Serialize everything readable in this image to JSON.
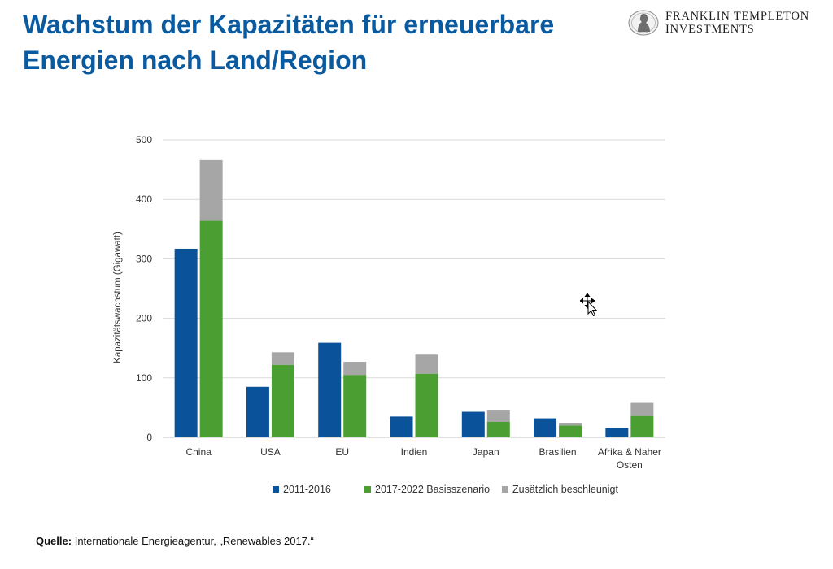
{
  "title": {
    "line1": "Wachstum der Kapazitäten für erneuerbare",
    "line2": "Energien nach Land/Region"
  },
  "logo": {
    "line1": "FRANKLIN TEMPLETON",
    "line2": "INVESTMENTS",
    "icon": "benjamin-franklin-medallion-icon"
  },
  "source": {
    "label": "Quelle:",
    "text": "Internationale Energieagentur, „Renewables 2017.“"
  },
  "colors": {
    "title": "#0a5aa0",
    "series_2011": "#0a5299",
    "series_2017": "#4a9e32",
    "series_acc": "#a6a6a6",
    "grid": "#d9d9d9"
  },
  "chart_data": {
    "type": "bar",
    "stacked_second_bar": true,
    "categories": [
      "China",
      "USA",
      "EU",
      "Indien",
      "Japan",
      "Brasilien",
      "Afrika & Naher Osten"
    ],
    "category_lines": [
      [
        "China"
      ],
      [
        "USA"
      ],
      [
        "EU"
      ],
      [
        "Indien"
      ],
      [
        "Japan"
      ],
      [
        "Brasilien"
      ],
      [
        "Afrika & Naher",
        "Osten"
      ]
    ],
    "series": [
      {
        "name": "2011-2016",
        "color": "#0a5299",
        "values": [
          317,
          85,
          159,
          35,
          43,
          32,
          16
        ]
      },
      {
        "name": "2017-2022 Basisszenario",
        "color": "#4a9e32",
        "values": [
          364,
          122,
          105,
          107,
          26,
          20,
          36
        ]
      },
      {
        "name": "Zusätzlich beschleunigt",
        "color": "#a6a6a6",
        "values": [
          102,
          21,
          22,
          32,
          19,
          4,
          22
        ]
      }
    ],
    "ylabel": "Kapazitätswachstum (Gigawatt)",
    "xlabel": "",
    "ylim": [
      0,
      500
    ],
    "yticks": [
      0,
      100,
      200,
      300,
      400,
      500
    ],
    "grid": true,
    "legend_position": "bottom"
  }
}
